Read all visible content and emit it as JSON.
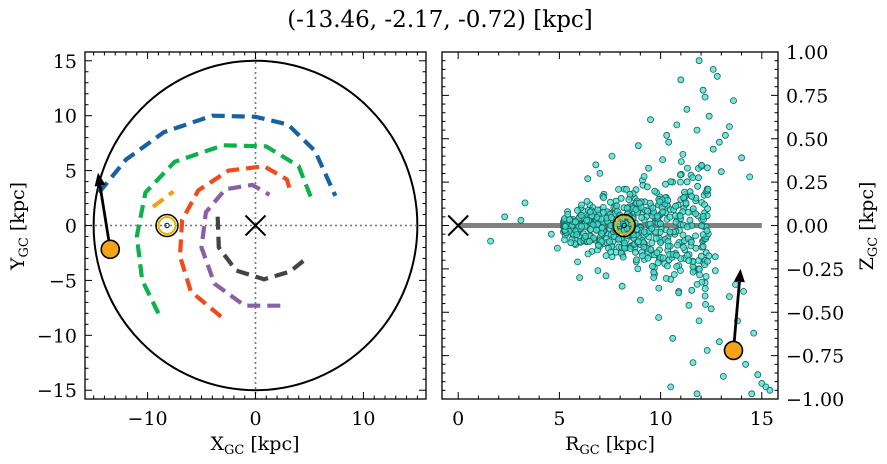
{
  "figure": {
    "title": "(-13.46, -2.17, -0.72) [kpc]"
  },
  "chart_data": [
    {
      "type": "line",
      "panel": "left",
      "xlabel": "X",
      "xlabel_sub": "GC",
      "xlabel_unit": " [kpc]",
      "ylabel": "Y",
      "ylabel_sub": "GC",
      "ylabel_unit": " [kpc]",
      "xlim": [
        -15.8,
        15.8
      ],
      "ylim": [
        -15.8,
        15.8
      ],
      "xticks": [
        -10,
        0,
        10
      ],
      "xtick_labels": [
        "−10",
        "0",
        "10"
      ],
      "yticks": [
        -15,
        -10,
        -5,
        0,
        5,
        10,
        15
      ],
      "ytick_labels": [
        "−15",
        "−10",
        "−5",
        "0",
        "5",
        "10",
        "15"
      ],
      "grid": false,
      "boundary_circle_radius": 15,
      "galactic_center": [
        0,
        0
      ],
      "sun": [
        -8.2,
        0
      ],
      "object": [
        -13.46,
        -2.17
      ],
      "arrow": {
        "from": [
          -13.46,
          -2.17
        ],
        "to": [
          -14.6,
          4.8
        ]
      },
      "spiral_arms": [
        {
          "color": "#1862a4",
          "points": [
            [
              -14.5,
              3.0
            ],
            [
              -12,
              6
            ],
            [
              -8.5,
              8.5
            ],
            [
              -4,
              10
            ],
            [
              0,
              9.9
            ],
            [
              3,
              9.2
            ],
            [
              5.5,
              6.8
            ],
            [
              7.4,
              2.7
            ]
          ]
        },
        {
          "color": "#0db04b",
          "points": [
            [
              -9,
              -8
            ],
            [
              -10.5,
              -5
            ],
            [
              -11,
              -1
            ],
            [
              -10.2,
              3
            ],
            [
              -7.5,
              5.8
            ],
            [
              -3,
              7.3
            ],
            [
              1,
              7.2
            ],
            [
              4,
              5.4
            ],
            [
              5.2,
              2.4
            ]
          ]
        },
        {
          "color": "#f04b1c",
          "points": [
            [
              -3.2,
              -8.3
            ],
            [
              -6,
              -6
            ],
            [
              -7,
              -2.8
            ],
            [
              -6.8,
              0.5
            ],
            [
              -5.3,
              3.2
            ],
            [
              -2.5,
              5
            ],
            [
              0.8,
              5.4
            ],
            [
              2.9,
              4.2
            ],
            [
              3.3,
              2.9
            ]
          ]
        },
        {
          "color": "#8860a4",
          "points": [
            [
              2.3,
              -7.3
            ],
            [
              -1,
              -7.3
            ],
            [
              -3.8,
              -5.3
            ],
            [
              -5,
              -2
            ],
            [
              -4.6,
              1.2
            ],
            [
              -2.8,
              3.3
            ],
            [
              -0.3,
              3.7
            ],
            [
              1.3,
              2.8
            ]
          ]
        },
        {
          "color": "#444444",
          "points": [
            [
              -3.5,
              0.8
            ],
            [
              -3.4,
              -2
            ],
            [
              -1.8,
              -4.1
            ],
            [
              0.8,
              -4.9
            ],
            [
              3.2,
              -4.2
            ],
            [
              4.6,
              -3.1
            ]
          ]
        },
        {
          "color": "#f0a020",
          "points": [
            [
              -9.5,
              1.7
            ],
            [
              -7.6,
              3.1
            ]
          ]
        }
      ]
    },
    {
      "type": "scatter",
      "panel": "right",
      "xlabel": "R",
      "xlabel_sub": "GC",
      "xlabel_unit": " [kpc]",
      "ylabel": "Z",
      "ylabel_sub": "GC",
      "ylabel_unit": " [kpc]",
      "xlim": [
        -0.8,
        15.8
      ],
      "ylim": [
        -1.0,
        1.0
      ],
      "xticks": [
        0,
        5,
        10,
        15
      ],
      "xtick_labels": [
        "0",
        "5",
        "10",
        "15"
      ],
      "yticks": [
        -1.0,
        -0.75,
        -0.5,
        -0.25,
        0.0,
        0.25,
        0.5,
        0.75,
        1.0
      ],
      "ytick_labels": [
        "−1.00",
        "−0.75",
        "−0.50",
        "−0.25",
        "0.00",
        "0.25",
        "0.50",
        "0.75",
        "1.00"
      ],
      "grid": false,
      "disk_line": {
        "x": [
          0,
          15
        ],
        "z": 0,
        "color": "#808080"
      },
      "galactic_center": [
        0,
        0
      ],
      "sun": [
        8.2,
        0
      ],
      "object": [
        13.6,
        -0.72
      ],
      "arrow": {
        "from": [
          13.6,
          -0.72
        ],
        "to": [
          13.95,
          -0.25
        ]
      },
      "point_color": "#40e0d0",
      "points": [
        [
          1.6,
          -0.09
        ],
        [
          2.3,
          0.05
        ],
        [
          3.1,
          0.03
        ],
        [
          3.3,
          0.13
        ],
        [
          4.6,
          -0.05
        ],
        [
          4.9,
          -0.13
        ],
        [
          5.2,
          0.02
        ],
        [
          5.4,
          0.08
        ],
        [
          5.6,
          -0.03
        ],
        [
          5.8,
          -0.11
        ],
        [
          6.0,
          0.05
        ],
        [
          6.2,
          0.01
        ],
        [
          6.3,
          -0.07
        ],
        [
          6.5,
          0.12
        ],
        [
          6.6,
          -0.15
        ],
        [
          6.7,
          0.04
        ],
        [
          6.9,
          -0.02
        ],
        [
          7.0,
          0.09
        ],
        [
          7.1,
          -0.1
        ],
        [
          7.2,
          0.18
        ],
        [
          7.3,
          0.03
        ],
        [
          7.4,
          -0.05
        ],
        [
          7.5,
          0.07
        ],
        [
          7.6,
          -0.18
        ],
        [
          7.7,
          0.01
        ],
        [
          7.8,
          0.14
        ],
        [
          7.9,
          -0.08
        ],
        [
          8.0,
          0.05
        ],
        [
          8.1,
          -0.03
        ],
        [
          8.2,
          0.21
        ],
        [
          8.3,
          -0.13
        ],
        [
          8.4,
          0.08
        ],
        [
          8.5,
          -0.06
        ],
        [
          8.6,
          0.02
        ],
        [
          8.7,
          0.16
        ],
        [
          8.8,
          -0.21
        ],
        [
          8.9,
          0.1
        ],
        [
          9.0,
          -0.01
        ],
        [
          9.1,
          0.26
        ],
        [
          9.2,
          -0.12
        ],
        [
          9.3,
          0.05
        ],
        [
          9.4,
          0.33
        ],
        [
          9.5,
          -0.17
        ],
        [
          9.6,
          0.07
        ],
        [
          9.7,
          -0.28
        ],
        [
          9.8,
          0.19
        ],
        [
          9.9,
          0.02
        ],
        [
          10.0,
          -0.09
        ],
        [
          10.1,
          0.38
        ],
        [
          10.2,
          -0.22
        ],
        [
          10.3,
          0.12
        ],
        [
          10.4,
          0.48
        ],
        [
          10.5,
          -0.31
        ],
        [
          10.6,
          0.25
        ],
        [
          10.7,
          -0.05
        ],
        [
          10.8,
          0.58
        ],
        [
          10.9,
          -0.38
        ],
        [
          11.0,
          0.15
        ],
        [
          11.1,
          0.41
        ],
        [
          11.2,
          -0.14
        ],
        [
          11.3,
          0.67
        ],
        [
          11.4,
          -0.46
        ],
        [
          11.5,
          0.29
        ],
        [
          11.6,
          0.08
        ],
        [
          11.7,
          -0.26
        ],
        [
          11.8,
          0.55
        ],
        [
          11.9,
          -0.55
        ],
        [
          12.0,
          0.34
        ],
        [
          12.1,
          0.78
        ],
        [
          12.2,
          -0.33
        ],
        [
          12.3,
          0.21
        ],
        [
          12.4,
          0.63
        ],
        [
          12.5,
          -0.48
        ],
        [
          12.6,
          0.44
        ],
        [
          12.7,
          -0.18
        ],
        [
          12.8,
          0.86
        ],
        [
          12.9,
          -0.67
        ],
        [
          13.0,
          0.31
        ],
        [
          13.2,
          0.52
        ],
        [
          13.4,
          -0.41
        ],
        [
          13.6,
          0.72
        ],
        [
          13.8,
          -0.55
        ],
        [
          14.0,
          0.39
        ],
        [
          14.2,
          -0.8
        ],
        [
          14.4,
          0.28
        ],
        [
          14.6,
          -0.62
        ],
        [
          14.8,
          -0.86
        ],
        [
          15.0,
          -0.91
        ],
        [
          15.2,
          -0.93
        ],
        [
          15.4,
          -0.95
        ],
        [
          11.9,
          0.95
        ],
        [
          12.6,
          0.9
        ],
        [
          11.0,
          0.84
        ],
        [
          12.2,
          0.74
        ],
        [
          9.5,
          0.61
        ],
        [
          10.3,
          0.52
        ],
        [
          8.9,
          0.46
        ],
        [
          7.6,
          0.4
        ],
        [
          6.4,
          0.27
        ],
        [
          6.8,
          0.35
        ],
        [
          13.1,
          -0.87
        ],
        [
          12.3,
          -0.72
        ],
        [
          11.6,
          -0.79
        ],
        [
          10.6,
          -0.65
        ],
        [
          9.9,
          -0.53
        ],
        [
          9.0,
          -0.43
        ],
        [
          8.1,
          -0.35
        ],
        [
          7.3,
          -0.29
        ],
        [
          6.9,
          -0.26
        ],
        [
          5.9,
          -0.21
        ],
        [
          14.5,
          -0.97
        ],
        [
          11.8,
          -0.97
        ],
        [
          10.5,
          -0.93
        ],
        [
          13.4,
          0.57
        ],
        [
          12.9,
          0.48
        ],
        [
          14.1,
          -0.38
        ],
        [
          13.7,
          -0.34
        ],
        [
          12.7,
          -0.26
        ],
        [
          6.0,
          -0.3
        ],
        [
          7.0,
          0.3
        ]
      ]
    }
  ]
}
